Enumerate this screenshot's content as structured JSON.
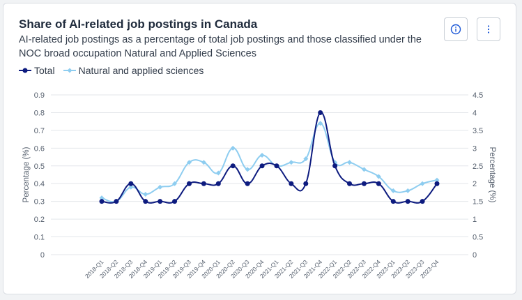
{
  "header": {
    "title": "Share of AI-related job postings in Canada",
    "subtitle": "AI-related job postings as a percentage of total job postings and those classified under the NOC broad occupation Natural and Applied Sciences"
  },
  "toolbar": {
    "info_icon": "info-icon",
    "menu_icon": "vertical-dots-icon"
  },
  "legend": {
    "total_label": "Total",
    "nas_label": "Natural and applied sciences"
  },
  "colors": {
    "total": "#0d1b7f",
    "nas": "#8ecdf0",
    "grid": "#e3e6ea"
  },
  "chart_data": {
    "type": "line",
    "title": "Share of AI-related job postings in Canada",
    "xlabel": "",
    "ylabel": "Percentage (%)",
    "y2label": "Percentage (%)",
    "ylim": [
      0,
      0.9
    ],
    "y2lim": [
      0,
      4.5
    ],
    "yticks": [
      "0",
      "0.1",
      "0.2",
      "0.3",
      "0.4",
      "0.5",
      "0.6",
      "0.7",
      "0.8",
      "0.9"
    ],
    "y2ticks": [
      "0",
      "0.5",
      "1",
      "1.5",
      "2",
      "2.5",
      "3",
      "3.5",
      "4",
      "4.5"
    ],
    "grid": true,
    "legend_position": "top-left",
    "categories": [
      "2018-Q1",
      "2018-Q2",
      "2018-Q3",
      "2018-Q4",
      "2019-Q1",
      "2019-Q2",
      "2019-Q3",
      "2019-Q4",
      "2020-Q1",
      "2020-Q2",
      "2020-Q3",
      "2020-Q4",
      "2021-Q1",
      "2021-Q2",
      "2021-Q3",
      "2021-Q4",
      "2022-Q1",
      "2022-Q2",
      "2022-Q3",
      "2022-Q4",
      "2023-Q1",
      "2023-Q2",
      "2023-Q3",
      "2023-Q4"
    ],
    "series": [
      {
        "name": "Total",
        "axis": "left",
        "values": [
          0.3,
          0.3,
          0.4,
          0.3,
          0.3,
          0.3,
          0.4,
          0.4,
          0.4,
          0.5,
          0.4,
          0.5,
          0.5,
          0.4,
          0.4,
          0.8,
          0.5,
          0.4,
          0.4,
          0.4,
          0.3,
          0.3,
          0.3,
          0.4
        ]
      },
      {
        "name": "Natural and applied sciences",
        "axis": "right",
        "values": [
          1.6,
          1.5,
          1.9,
          1.7,
          1.9,
          2.0,
          2.6,
          2.6,
          2.3,
          3.0,
          2.4,
          2.8,
          2.5,
          2.6,
          2.7,
          3.7,
          2.6,
          2.6,
          2.4,
          2.2,
          1.8,
          1.8,
          2.0,
          2.1
        ]
      }
    ]
  }
}
